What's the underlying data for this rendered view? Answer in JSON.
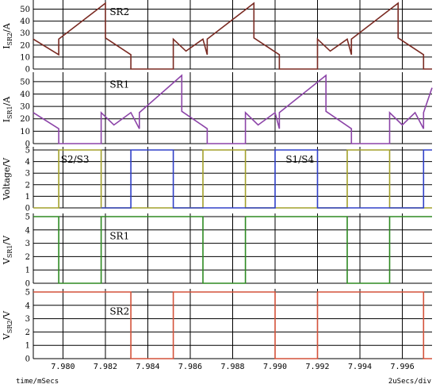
{
  "chart_data": {
    "type": "line",
    "x_ticks": [
      "7.980",
      "7.982",
      "7.984",
      "7.986",
      "7.988",
      "7.990",
      "7.992",
      "7.994",
      "7.996"
    ],
    "x_label": "time/mSecs",
    "scale_label": "2uSecs/div",
    "x_range": [
      7.9786,
      7.9974
    ],
    "panels": [
      {
        "ylabel_main": "I",
        "ylabel_sub": "SR2",
        "ylabel_unit": "/A",
        "ylim": [
          0,
          55
        ],
        "yticks": [
          0,
          10,
          20,
          30,
          40,
          50
        ],
        "annotations": [
          {
            "text": "SR2",
            "x": 7.9822,
            "y": 45
          }
        ],
        "series": [
          {
            "color": "#7a2a22",
            "points": [
              [
                7.9786,
                25
              ],
              [
                7.9798,
                12
              ],
              [
                7.9798,
                25
              ],
              [
                7.982,
                55
              ],
              [
                7.982,
                26
              ],
              [
                7.9832,
                12
              ],
              [
                7.9832,
                0
              ],
              [
                7.9852,
                0
              ],
              [
                7.9852,
                25
              ],
              [
                7.9858,
                15
              ],
              [
                7.9866,
                25
              ],
              [
                7.9868,
                12
              ],
              [
                7.9868,
                25
              ],
              [
                7.989,
                55
              ],
              [
                7.989,
                26
              ],
              [
                7.9902,
                12
              ],
              [
                7.9902,
                0
              ],
              [
                7.992,
                0
              ],
              [
                7.992,
                25
              ],
              [
                7.9926,
                15
              ],
              [
                7.9934,
                25
              ],
              [
                7.9936,
                12
              ],
              [
                7.9936,
                25
              ],
              [
                7.9958,
                55
              ],
              [
                7.9958,
                26
              ],
              [
                7.997,
                12
              ],
              [
                7.997,
                0
              ],
              [
                7.9974,
                0
              ]
            ]
          }
        ]
      },
      {
        "ylabel_main": "I",
        "ylabel_sub": "SR1",
        "ylabel_unit": "/A",
        "ylim": [
          0,
          55
        ],
        "yticks": [
          0,
          10,
          20,
          30,
          40,
          50
        ],
        "annotations": [
          {
            "text": "SR1",
            "x": 7.9822,
            "y": 45
          }
        ],
        "series": [
          {
            "color": "#8c44a8",
            "points": [
              [
                7.9786,
                25
              ],
              [
                7.9798,
                12
              ],
              [
                7.9798,
                0
              ],
              [
                7.9818,
                0
              ],
              [
                7.9818,
                25
              ],
              [
                7.9824,
                15
              ],
              [
                7.9832,
                25
              ],
              [
                7.9836,
                12
              ],
              [
                7.9836,
                25
              ],
              [
                7.9856,
                55
              ],
              [
                7.9856,
                26
              ],
              [
                7.9868,
                12
              ],
              [
                7.9868,
                0
              ],
              [
                7.9886,
                0
              ],
              [
                7.9886,
                25
              ],
              [
                7.9892,
                15
              ],
              [
                7.99,
                25
              ],
              [
                7.9902,
                12
              ],
              [
                7.9902,
                25
              ],
              [
                7.9924,
                55
              ],
              [
                7.9924,
                26
              ],
              [
                7.9936,
                12
              ],
              [
                7.9936,
                0
              ],
              [
                7.9954,
                0
              ],
              [
                7.9954,
                25
              ],
              [
                7.996,
                15
              ],
              [
                7.9966,
                25
              ],
              [
                7.997,
                12
              ],
              [
                7.997,
                25
              ],
              [
                7.9974,
                45
              ]
            ]
          }
        ]
      },
      {
        "ylabel_main": "Voltage/V",
        "ylabel_sub": "",
        "ylabel_unit": "",
        "ylim": [
          0,
          5
        ],
        "yticks": [
          0,
          1,
          2,
          3,
          4,
          5
        ],
        "annotations": [
          {
            "text": "S2/S3",
            "x": 7.9799,
            "y": 3.9
          },
          {
            "text": "S1/S4",
            "x": 7.9905,
            "y": 3.9
          }
        ],
        "series": [
          {
            "color": "#a3a12b",
            "points": [
              [
                7.9786,
                0
              ],
              [
                7.9798,
                0
              ],
              [
                7.9798,
                5
              ],
              [
                7.9818,
                5
              ],
              [
                7.9818,
                0
              ],
              [
                7.9866,
                0
              ],
              [
                7.9866,
                5
              ],
              [
                7.9886,
                5
              ],
              [
                7.9886,
                0
              ],
              [
                7.9934,
                0
              ],
              [
                7.9934,
                5
              ],
              [
                7.9954,
                5
              ],
              [
                7.9954,
                0
              ],
              [
                7.9974,
                0
              ]
            ]
          },
          {
            "color": "#3040c8",
            "points": [
              [
                7.9818,
                0
              ],
              [
                7.9832,
                0
              ],
              [
                7.9832,
                5
              ],
              [
                7.9852,
                5
              ],
              [
                7.9852,
                0
              ],
              [
                7.9866,
                0
              ],
              [
                7.9886,
                0
              ],
              [
                7.99,
                0
              ],
              [
                7.99,
                5
              ],
              [
                7.992,
                5
              ],
              [
                7.992,
                0
              ],
              [
                7.9934,
                0
              ],
              [
                7.9954,
                0
              ],
              [
                7.997,
                0
              ],
              [
                7.997,
                5
              ],
              [
                7.9974,
                5
              ]
            ]
          }
        ]
      },
      {
        "ylabel_main": "V",
        "ylabel_sub": "SR1",
        "ylabel_unit": "/V",
        "ylim": [
          0,
          5
        ],
        "yticks": [
          0,
          1,
          2,
          3,
          4,
          5
        ],
        "annotations": [
          {
            "text": "SR1",
            "x": 7.9822,
            "y": 3.3
          }
        ],
        "series": [
          {
            "color": "#2e8a22",
            "points": [
              [
                7.9786,
                5
              ],
              [
                7.9798,
                5
              ],
              [
                7.9798,
                0
              ],
              [
                7.9818,
                0
              ],
              [
                7.9818,
                5
              ],
              [
                7.9866,
                5
              ],
              [
                7.9866,
                0
              ],
              [
                7.9886,
                0
              ],
              [
                7.9886,
                5
              ],
              [
                7.9934,
                5
              ],
              [
                7.9934,
                0
              ],
              [
                7.9954,
                0
              ],
              [
                7.9954,
                5
              ],
              [
                7.9974,
                5
              ]
            ]
          }
        ]
      },
      {
        "ylabel_main": "V",
        "ylabel_sub": "SR2",
        "ylabel_unit": "/V",
        "ylim": [
          0,
          5
        ],
        "yticks": [
          0,
          1,
          2,
          3,
          4,
          5
        ],
        "annotations": [
          {
            "text": "SR2",
            "x": 7.9822,
            "y": 3.3
          }
        ],
        "series": [
          {
            "color": "#d4523a",
            "points": [
              [
                7.9786,
                5
              ],
              [
                7.9832,
                5
              ],
              [
                7.9832,
                0
              ],
              [
                7.9852,
                0
              ],
              [
                7.9852,
                5
              ],
              [
                7.99,
                5
              ],
              [
                7.99,
                0
              ],
              [
                7.992,
                0
              ],
              [
                7.992,
                5
              ],
              [
                7.997,
                5
              ],
              [
                7.997,
                0
              ],
              [
                7.9974,
                0
              ]
            ]
          }
        ]
      }
    ]
  }
}
